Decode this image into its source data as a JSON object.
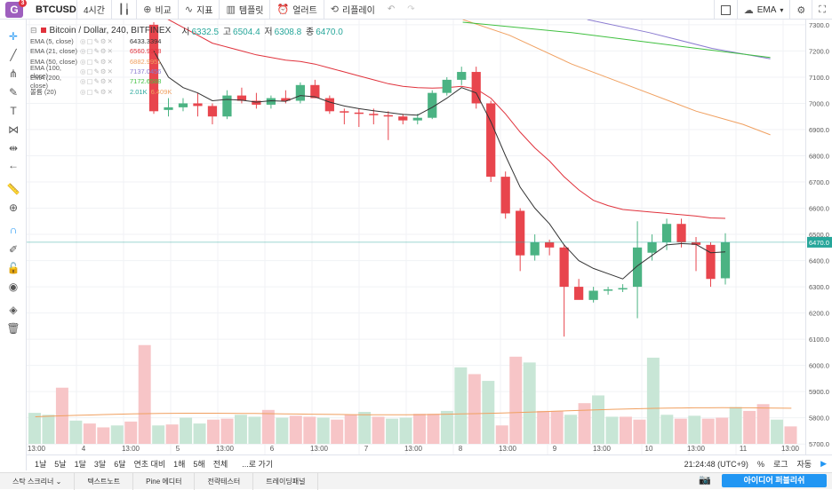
{
  "toolbar": {
    "logo_letter": "G",
    "notif_count": "3",
    "symbol": "BTCUSD",
    "interval": "4시간",
    "compare": "비교",
    "indicators": "지표",
    "templates": "템플릿",
    "alert": "얼러트",
    "replay": "리플레이",
    "ema_label": "EMA"
  },
  "legend": {
    "title": "Bitcoin / Dollar, 240, BITFINEX",
    "open_label": "시",
    "open": "6332.5",
    "high_label": "고",
    "high": "6504.4",
    "low_label": "저",
    "low": "6308.8",
    "close_label": "종",
    "close": "6470.0",
    "indicators": [
      {
        "name": "EMA (5, close)",
        "value": "6433.3394",
        "color": "#333333"
      },
      {
        "name": "EMA (21, close)",
        "value": "6560.9928",
        "color": "#e0323c"
      },
      {
        "name": "EMA (50, close)",
        "value": "6882.9951",
        "color": "#f0a060"
      },
      {
        "name": "EMA (100, close)",
        "value": "7137.0456",
        "color": "#8a7ad0"
      },
      {
        "name": "EMA (200, close)",
        "value": "7172.6588",
        "color": "#40c040"
      },
      {
        "name": "볼륨 (20)",
        "value": "2.01K",
        "value2": "6.409K",
        "color": "#26a69a"
      }
    ]
  },
  "price_axis": {
    "ticks": [
      "7300.0",
      "7200.0",
      "7100.0",
      "7000.0",
      "6900.0",
      "6800.0",
      "6700.0",
      "6600.0",
      "6500.0",
      "6400.0",
      "6300.0",
      "6200.0",
      "6100.0",
      "6000.0",
      "5900.0",
      "5800.0",
      "5700.0"
    ],
    "current": "6470.0"
  },
  "time_axis": {
    "labels": [
      "13:00",
      "4",
      "13:00",
      "5",
      "13:00",
      "6",
      "13:00",
      "7",
      "13:00",
      "8",
      "13:00",
      "9",
      "13:00",
      "10",
      "13:00",
      "11",
      "13:00"
    ]
  },
  "chart_data": {
    "type": "candlestick",
    "price_range": [
      5660,
      7320
    ],
    "candles": [
      {
        "o": 7300,
        "h": 7310,
        "l": 6960,
        "c": 6970
      },
      {
        "o": 6975,
        "h": 7020,
        "l": 6950,
        "c": 6985
      },
      {
        "o": 6985,
        "h": 7020,
        "l": 6970,
        "c": 7000
      },
      {
        "o": 7000,
        "h": 7040,
        "l": 6950,
        "c": 6990
      },
      {
        "o": 6990,
        "h": 7000,
        "l": 6920,
        "c": 6950
      },
      {
        "o": 6950,
        "h": 7050,
        "l": 6940,
        "c": 7030
      },
      {
        "o": 7030,
        "h": 7060,
        "l": 7000,
        "c": 7010
      },
      {
        "o": 7010,
        "h": 7040,
        "l": 6980,
        "c": 6995
      },
      {
        "o": 6995,
        "h": 7030,
        "l": 6980,
        "c": 7020
      },
      {
        "o": 7020,
        "h": 7050,
        "l": 7000,
        "c": 7010
      },
      {
        "o": 7010,
        "h": 7080,
        "l": 7000,
        "c": 7070
      },
      {
        "o": 7070,
        "h": 7090,
        "l": 7020,
        "c": 7020
      },
      {
        "o": 7020,
        "h": 7030,
        "l": 6960,
        "c": 6970
      },
      {
        "o": 6970,
        "h": 6980,
        "l": 6920,
        "c": 6965
      },
      {
        "o": 6965,
        "h": 6980,
        "l": 6910,
        "c": 6960
      },
      {
        "o": 6960,
        "h": 6980,
        "l": 6920,
        "c": 6955
      },
      {
        "o": 6955,
        "h": 6970,
        "l": 6860,
        "c": 6950
      },
      {
        "o": 6950,
        "h": 6960,
        "l": 6920,
        "c": 6935
      },
      {
        "o": 6935,
        "h": 6960,
        "l": 6920,
        "c": 6945
      },
      {
        "o": 6945,
        "h": 7050,
        "l": 6940,
        "c": 7040
      },
      {
        "o": 7040,
        "h": 7100,
        "l": 7030,
        "c": 7090
      },
      {
        "o": 7090,
        "h": 7140,
        "l": 7070,
        "c": 7120
      },
      {
        "o": 7120,
        "h": 7140,
        "l": 6980,
        "c": 7000
      },
      {
        "o": 7000,
        "h": 7010,
        "l": 6700,
        "c": 6720
      },
      {
        "o": 6720,
        "h": 6740,
        "l": 6560,
        "c": 6580
      },
      {
        "o": 6590,
        "h": 6600,
        "l": 6360,
        "c": 6420
      },
      {
        "o": 6420,
        "h": 6500,
        "l": 6400,
        "c": 6470
      },
      {
        "o": 6470,
        "h": 6480,
        "l": 6420,
        "c": 6450
      },
      {
        "o": 6450,
        "h": 6460,
        "l": 6110,
        "c": 6300
      },
      {
        "o": 6300,
        "h": 6330,
        "l": 6260,
        "c": 6250
      },
      {
        "o": 6250,
        "h": 6300,
        "l": 6240,
        "c": 6285
      },
      {
        "o": 6285,
        "h": 6300,
        "l": 6270,
        "c": 6290
      },
      {
        "o": 6290,
        "h": 6310,
        "l": 6280,
        "c": 6295
      },
      {
        "o": 6300,
        "h": 6550,
        "l": 6180,
        "c": 6450
      },
      {
        "o": 6430,
        "h": 6500,
        "l": 6400,
        "c": 6470
      },
      {
        "o": 6470,
        "h": 6560,
        "l": 6440,
        "c": 6540
      },
      {
        "o": 6540,
        "h": 6560,
        "l": 6450,
        "c": 6470
      },
      {
        "o": 6470,
        "h": 6490,
        "l": 6360,
        "c": 6460
      },
      {
        "o": 6460,
        "h": 6470,
        "l": 6300,
        "c": 6330
      },
      {
        "o": 6332.5,
        "h": 6504.4,
        "l": 6308.8,
        "c": 6470
      }
    ],
    "ema5": [
      7200,
      7100,
      7060,
      7040,
      7010,
      7015,
      7012,
      7005,
      7010,
      7008,
      7030,
      7025,
      7005,
      6990,
      6980,
      6972,
      6965,
      6958,
      6955,
      6985,
      7020,
      7060,
      7040,
      6930,
      6800,
      6680,
      6600,
      6540,
      6460,
      6400,
      6370,
      6350,
      6330,
      6380,
      6420,
      6460,
      6465,
      6462,
      6430,
      6433
    ],
    "ema21": [
      7350,
      7320,
      7290,
      7260,
      7230,
      7215,
      7200,
      7185,
      7175,
      7165,
      7160,
      7150,
      7135,
      7120,
      7105,
      7090,
      7075,
      7065,
      7060,
      7058,
      7060,
      7065,
      7055,
      7020,
      6960,
      6890,
      6830,
      6780,
      6720,
      6670,
      6630,
      6610,
      6595,
      6590,
      6585,
      6580,
      6575,
      6570,
      6563,
      6561
    ],
    "ema50_visible": [
      [
        0.56,
        7320
      ],
      [
        0.62,
        7260
      ],
      [
        0.7,
        7150
      ],
      [
        0.78,
        7060
      ],
      [
        0.86,
        6970
      ],
      [
        0.92,
        6920
      ],
      [
        0.955,
        6880
      ]
    ],
    "ema100_visible": [
      [
        0.72,
        7320
      ],
      [
        0.8,
        7270
      ],
      [
        0.88,
        7210
      ],
      [
        0.955,
        7170
      ]
    ],
    "ema200_visible": [
      [
        0.56,
        7310
      ],
      [
        0.7,
        7270
      ],
      [
        0.82,
        7225
      ],
      [
        0.955,
        7175
      ]
    ],
    "volume": [
      320,
      300,
      580,
      240,
      210,
      170,
      190,
      230,
      1020,
      190,
      200,
      270,
      210,
      250,
      260,
      300,
      280,
      350,
      270,
      290,
      280,
      270,
      250,
      300,
      330,
      280,
      260,
      270,
      310,
      310,
      340,
      790,
      720,
      650,
      190,
      900,
      840,
      340,
      340,
      300,
      420,
      500,
      280,
      280,
      250,
      890,
      300,
      260,
      290,
      260,
      270,
      380,
      340,
      410,
      250,
      180
    ],
    "volume_colors": "up/down"
  },
  "bottom": {
    "ranges": [
      "1날",
      "5날",
      "1달",
      "3달",
      "6달",
      "연초 대비",
      "1해",
      "5해",
      "전체"
    ],
    "goto": "...로 가기",
    "clock": "21:24:48 (UTC+9)",
    "pct": "%",
    "log": "로그",
    "auto": "자동"
  },
  "tabs": [
    "스탁 스크리너",
    "텍스트노트",
    "Pine 에디터",
    "전략테스터",
    "트레이딩패널"
  ],
  "publish": "아이디어 퍼블리쉬"
}
